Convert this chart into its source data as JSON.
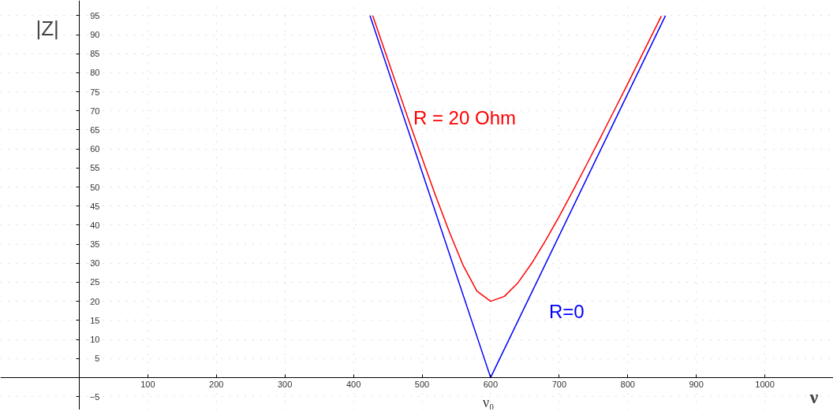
{
  "chart_data": {
    "type": "line",
    "xlabel": "ν",
    "ylabel": "|Z|",
    "xlim": [
      -115,
      1100
    ],
    "ylim": [
      -8.5,
      99
    ],
    "xticks": [
      100,
      200,
      300,
      400,
      500,
      600,
      700,
      800,
      900,
      1000
    ],
    "yticks": [
      -5,
      5,
      10,
      15,
      20,
      25,
      30,
      35,
      40,
      45,
      50,
      55,
      60,
      65,
      70,
      75,
      80,
      85,
      90,
      95
    ],
    "grid": true,
    "series": [
      {
        "name": "R = 20 Ohm",
        "color": "#ff0000",
        "x": [
          428,
          440,
          460,
          480,
          500,
          520,
          540,
          560,
          580,
          600,
          620,
          640,
          660,
          680,
          700,
          720,
          740,
          760,
          780,
          800,
          820,
          849
        ],
        "values": [
          95,
          88.7,
          78.2,
          67.8,
          57.6,
          47.6,
          38.1,
          29.4,
          22.7,
          20,
          21.3,
          24.9,
          30.0,
          35.9,
          42.3,
          49.0,
          55.9,
          62.9,
          70.0,
          77.1,
          84.4,
          94.9
        ]
      },
      {
        "name": "R=0",
        "color": "#0000ff",
        "x": [
          424,
          600,
          855
        ],
        "values": [
          95,
          0,
          95
        ]
      }
    ],
    "annotations": [
      {
        "text": "ν₀",
        "x": 600,
        "y": 0
      }
    ]
  }
}
